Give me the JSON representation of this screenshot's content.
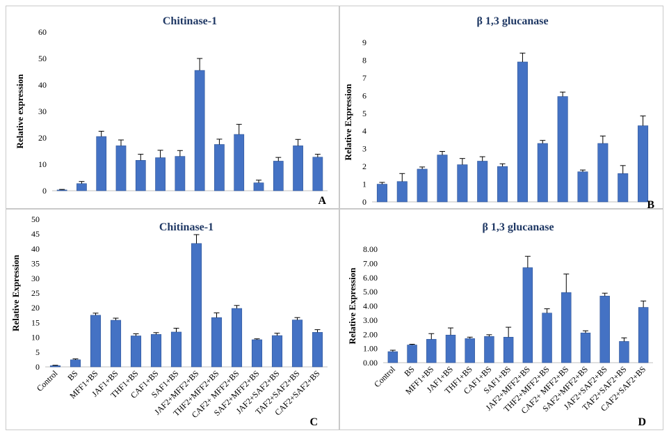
{
  "categories": [
    "Control",
    "BS",
    "MFF1+BS",
    "JAF1+BS",
    "THF1+BS",
    "CAF1+BS",
    "SAF1+BS",
    "JAF2+MFF2+BS",
    "THF2+MFF2+BS",
    "CAF2+ MFF2+BS",
    "SAF2+MFF2+BS",
    "JAF2+SAF2+BS",
    "TAF2+SAF2+BS",
    "CAF2+SAF2+BS"
  ],
  "colors": {
    "bar": "#4472c4",
    "bar_dark": "#2f5597",
    "error": "#000000"
  },
  "chart_data": [
    {
      "panel_label": "A",
      "type": "bar",
      "title": "Chitinase-1",
      "ylabel": "Relative expression",
      "ylim": [
        0,
        60
      ],
      "yticks": [
        "0",
        "10",
        "20",
        "30",
        "40",
        "50",
        "60"
      ],
      "show_xlabels": false,
      "values": [
        0.3,
        2.7,
        20.5,
        17,
        11.5,
        12.5,
        13,
        45.5,
        17.5,
        21.3,
        3,
        11.2,
        17,
        12.7
      ],
      "errors": [
        0.2,
        0.8,
        2,
        2.2,
        2.3,
        2.8,
        2.2,
        4.5,
        2,
        3.8,
        1,
        1.4,
        2.4,
        1.1
      ]
    },
    {
      "panel_label": "B",
      "type": "bar",
      "title": "β 1,3 glucanase",
      "ylabel": "Relative Expression",
      "ylim": [
        0,
        9
      ],
      "yticks": [
        "0",
        "1",
        "2",
        "3",
        "4",
        "5",
        "6",
        "7",
        "8",
        "9"
      ],
      "show_xlabels": false,
      "values": [
        1,
        1.15,
        1.85,
        2.65,
        2.1,
        2.3,
        2,
        7.9,
        3.3,
        5.95,
        1.7,
        3.3,
        1.6,
        4.3
      ],
      "errors": [
        0.1,
        0.45,
        0.12,
        0.2,
        0.35,
        0.25,
        0.15,
        0.5,
        0.17,
        0.25,
        0.1,
        0.42,
        0.45,
        0.55
      ]
    },
    {
      "panel_label": "C",
      "type": "bar",
      "title": "Chitinase-1",
      "ylabel": "Relative Expression",
      "ylim": [
        0,
        50
      ],
      "yticks": [
        "0",
        "5",
        "10",
        "15",
        "20",
        "25",
        "30",
        "35",
        "40",
        "45",
        "50"
      ],
      "show_xlabels": true,
      "values": [
        0.4,
        2.4,
        17.5,
        15.8,
        10.5,
        11,
        11.8,
        41.8,
        16.7,
        19.8,
        9.2,
        10.6,
        15.9,
        11.7
      ],
      "errors": [
        0.15,
        0.3,
        0.7,
        0.7,
        0.7,
        0.6,
        1.3,
        3,
        1.6,
        1,
        0.3,
        0.8,
        0.8,
        0.9
      ]
    },
    {
      "panel_label": "D",
      "type": "bar",
      "title": "β 1,3 glucanase",
      "ylabel": "Relative Expression",
      "ylim": [
        0,
        8
      ],
      "yticks": [
        "0.00",
        "1.00",
        "2.00",
        "3.00",
        "4.00",
        "5.00",
        "6.00",
        "7.00",
        "8.00"
      ],
      "show_xlabels": true,
      "values": [
        0.78,
        1.25,
        1.65,
        1.95,
        1.7,
        1.85,
        1.8,
        6.7,
        3.5,
        4.95,
        2.1,
        4.7,
        1.5,
        3.9
      ],
      "errors": [
        0.1,
        0.05,
        0.4,
        0.5,
        0.1,
        0.12,
        0.7,
        0.8,
        0.3,
        1.3,
        0.15,
        0.2,
        0.25,
        0.45
      ]
    }
  ]
}
